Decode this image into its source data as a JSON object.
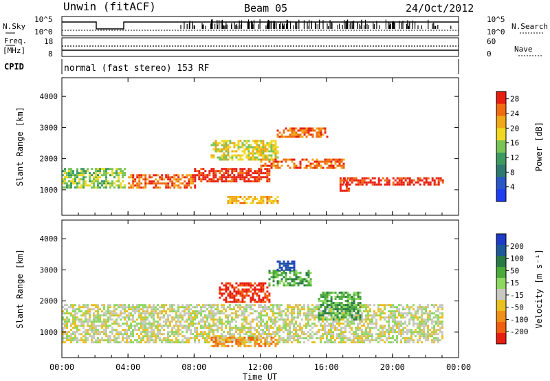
{
  "header": {
    "station": "Unwin (fitACF)",
    "beam": "Beam 05",
    "date": "24/Oct/2012"
  },
  "strip_labels": {
    "nsky": "N.Sky",
    "nsearch": "N.Search",
    "freq": "Freq.",
    "freq_unit": "[MHz]",
    "nave": "Nave",
    "cpid": "CPID",
    "cpid_value": "normal (fast stereo) 153 RF",
    "nsky_ticks": [
      "10^5",
      "10^0"
    ],
    "nsearch_ticks": [
      "10^5",
      "10^0"
    ],
    "freq_ticks": [
      "18",
      "8"
    ],
    "nave_ticks": [
      "60",
      "0"
    ]
  },
  "colors": {
    "power_scale": [
      "#1e3cf0",
      "#2a56c8",
      "#2e7a6e",
      "#3c9a60",
      "#78c456",
      "#f0d820",
      "#f0a818",
      "#f06c10",
      "#e81e10"
    ],
    "velocity_scale": [
      "#1e3cc8",
      "#1e5a9a",
      "#2a7a46",
      "#4aaa3a",
      "#8cd860",
      "#c8c8c0",
      "#e8c020",
      "#f09018",
      "#f06010",
      "#e81e10"
    ],
    "ground_scatter": "#c0c0b8"
  },
  "chart_data": [
    {
      "type": "heatmap",
      "name": "power",
      "ylabel": "Slant Range [km]",
      "xlabel": "",
      "x_ticks": [
        "00:00",
        "04:00",
        "08:00",
        "12:00",
        "16:00",
        "20:00",
        "00:00"
      ],
      "xlim_hours": [
        0,
        24
      ],
      "ylim_km": [
        180,
        4600
      ],
      "y_ticks": [
        1000,
        2000,
        3000,
        4000
      ],
      "colorbar": {
        "label": "Power [dB]",
        "ticks": [
          4,
          8,
          12,
          16,
          20,
          24,
          28
        ],
        "range": [
          0,
          30
        ]
      },
      "features": [
        {
          "t": [
            0,
            3.8
          ],
          "r": [
            1100,
            1700
          ],
          "level": 4
        },
        {
          "t": [
            4,
            8
          ],
          "r": [
            1100,
            1500
          ],
          "level": 7
        },
        {
          "t": [
            8,
            12.5
          ],
          "r": [
            1300,
            1700
          ],
          "level": 8
        },
        {
          "t": [
            12,
            17
          ],
          "r": [
            1700,
            2000
          ],
          "level": 7
        },
        {
          "t": [
            17,
            23
          ],
          "r": [
            1150,
            1400
          ],
          "level": 8
        },
        {
          "t": [
            9,
            13
          ],
          "r": [
            2000,
            2600
          ],
          "level": 5
        },
        {
          "t": [
            13,
            16
          ],
          "r": [
            2700,
            3000
          ],
          "level": 7
        },
        {
          "t": [
            10,
            13
          ],
          "r": [
            550,
            800
          ],
          "level": 6
        },
        {
          "t": [
            16.8,
            17.4
          ],
          "r": [
            1000,
            1400
          ],
          "level": 8
        }
      ]
    },
    {
      "type": "heatmap",
      "name": "velocity",
      "ylabel": "Slant Range [km]",
      "xlabel": "Time UT",
      "x_ticks": [
        "00:00",
        "04:00",
        "08:00",
        "12:00",
        "16:00",
        "20:00",
        "00:00"
      ],
      "xlim_hours": [
        0,
        24
      ],
      "ylim_km": [
        180,
        4600
      ],
      "y_ticks": [
        1000,
        2000,
        3000,
        4000
      ],
      "colorbar": {
        "label": "Velocity [m s⁻¹]",
        "ticks": [
          200,
          100,
          50,
          15,
          -15,
          -50,
          -100,
          -200
        ],
        "range": [
          -250,
          250
        ]
      },
      "features": [
        {
          "t": [
            0,
            23
          ],
          "r": [
            700,
            1900
          ],
          "level": 5
        },
        {
          "t": [
            9.5,
            12.5
          ],
          "r": [
            2000,
            2600
          ],
          "level": 9
        },
        {
          "t": [
            12.5,
            15
          ],
          "r": [
            2500,
            3000
          ],
          "level": 3
        },
        {
          "t": [
            15.5,
            18
          ],
          "r": [
            1400,
            2300
          ],
          "level": 3
        },
        {
          "t": [
            9,
            13
          ],
          "r": [
            550,
            850
          ],
          "level": 7
        },
        {
          "t": [
            13,
            14
          ],
          "r": [
            3000,
            3300
          ],
          "level": 0
        }
      ]
    }
  ]
}
